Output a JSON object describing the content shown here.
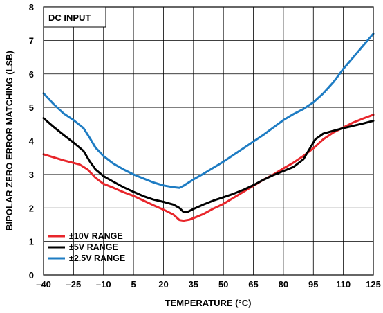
{
  "chart_data": {
    "type": "line",
    "annotation": "DC INPUT",
    "xlabel": "TEMPERATURE (°C)",
    "ylabel": "BIPOLAR ZERO ERROR MATCHING (LSB)",
    "xlim": [
      -40,
      125
    ],
    "ylim": [
      0,
      8
    ],
    "xticks": [
      -40,
      -25,
      -10,
      5,
      20,
      35,
      50,
      65,
      80,
      95,
      110,
      125
    ],
    "xtick_labels": [
      "–40",
      "–25",
      "–10",
      "5",
      "20",
      "35",
      "50",
      "65",
      "80",
      "95",
      "110",
      "125"
    ],
    "yticks": [
      0,
      1,
      2,
      3,
      4,
      5,
      6,
      7,
      8
    ],
    "ytick_labels": [
      "0",
      "1",
      "2",
      "3",
      "4",
      "5",
      "6",
      "7",
      "8"
    ],
    "grid": true,
    "legend_position": "bottom-left",
    "series": [
      {
        "name": "±10V RANGE",
        "color": "#e8262b",
        "x": [
          -40,
          -30,
          -22,
          -18,
          -14,
          -10,
          -5,
          0,
          5,
          10,
          15,
          20,
          25,
          28,
          30,
          33,
          36,
          40,
          45,
          50,
          55,
          60,
          65,
          70,
          75,
          80,
          85,
          90,
          95,
          100,
          105,
          110,
          115,
          120,
          125
        ],
        "y": [
          3.6,
          3.42,
          3.3,
          3.15,
          2.9,
          2.72,
          2.6,
          2.47,
          2.36,
          2.22,
          2.08,
          1.95,
          1.8,
          1.64,
          1.62,
          1.65,
          1.72,
          1.82,
          1.98,
          2.12,
          2.3,
          2.48,
          2.66,
          2.84,
          3.0,
          3.18,
          3.35,
          3.55,
          3.78,
          4.05,
          4.25,
          4.4,
          4.55,
          4.67,
          4.78
        ]
      },
      {
        "name": "±5V RANGE",
        "color": "#000000",
        "x": [
          -40,
          -35,
          -30,
          -25,
          -20,
          -17,
          -14,
          -10,
          -5,
          0,
          5,
          10,
          15,
          20,
          25,
          28,
          30,
          32,
          35,
          40,
          45,
          50,
          55,
          60,
          65,
          70,
          75,
          80,
          85,
          90,
          93,
          96,
          100,
          105,
          110,
          115,
          120,
          125
        ],
        "y": [
          4.68,
          4.42,
          4.18,
          3.95,
          3.7,
          3.4,
          3.15,
          2.95,
          2.78,
          2.62,
          2.48,
          2.35,
          2.25,
          2.18,
          2.1,
          2.0,
          1.88,
          1.88,
          1.97,
          2.1,
          2.22,
          2.32,
          2.42,
          2.54,
          2.68,
          2.84,
          2.98,
          3.1,
          3.22,
          3.45,
          3.75,
          4.05,
          4.22,
          4.3,
          4.38,
          4.45,
          4.52,
          4.6
        ]
      },
      {
        "name": "±2.5V RANGE",
        "color": "#1e7cc3",
        "x": [
          -40,
          -35,
          -30,
          -25,
          -20,
          -17,
          -14,
          -10,
          -5,
          0,
          5,
          10,
          15,
          20,
          25,
          28,
          30,
          35,
          40,
          45,
          50,
          55,
          60,
          65,
          70,
          75,
          80,
          85,
          90,
          95,
          100,
          105,
          110,
          115,
          120,
          125
        ],
        "y": [
          5.42,
          5.1,
          4.82,
          4.62,
          4.38,
          4.1,
          3.8,
          3.55,
          3.32,
          3.15,
          3.0,
          2.88,
          2.76,
          2.67,
          2.62,
          2.6,
          2.66,
          2.85,
          3.02,
          3.2,
          3.38,
          3.58,
          3.78,
          3.98,
          4.18,
          4.4,
          4.62,
          4.8,
          4.95,
          5.15,
          5.42,
          5.75,
          6.15,
          6.5,
          6.85,
          7.2
        ]
      }
    ]
  }
}
